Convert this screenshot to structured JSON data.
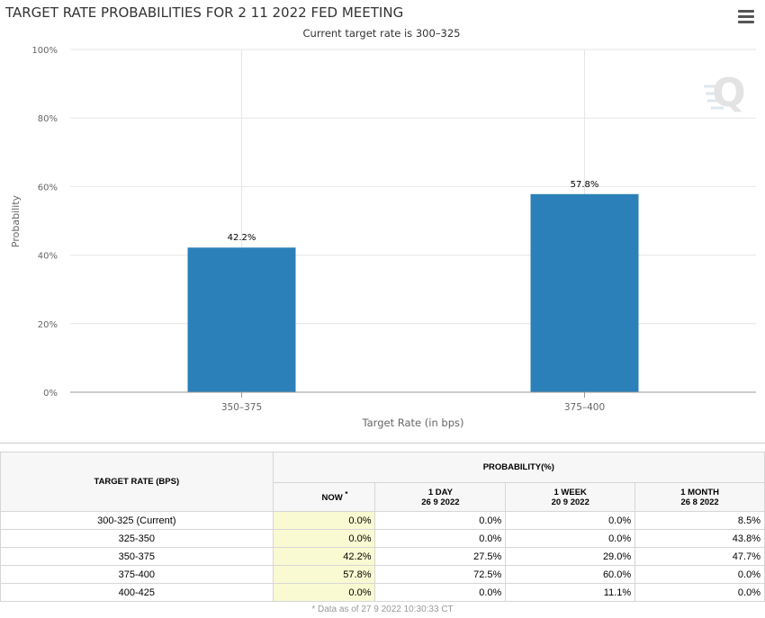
{
  "chart_data": {
    "type": "bar",
    "title": "TARGET RATE PROBABILITIES FOR 2 11 2022 FED MEETING",
    "subtitle": "Current target rate is 300–325",
    "xlabel": "Target Rate (in bps)",
    "ylabel": "Probability",
    "categories": [
      "350–375",
      "375–400"
    ],
    "values": [
      42.2,
      57.8
    ],
    "data_labels": [
      "42.2%",
      "57.8%"
    ],
    "ylim": [
      0,
      100
    ],
    "yticks": [
      0,
      20,
      40,
      60,
      80,
      100
    ],
    "ytick_labels": [
      "0%",
      "20%",
      "40%",
      "60%",
      "80%",
      "100%"
    ],
    "grid": true,
    "bar_color": "#2b80b9"
  },
  "logo_text": "Q",
  "table": {
    "rate_header": "TARGET RATE (BPS)",
    "prob_header": "PROBABILITY(%)",
    "col_now": "NOW",
    "col_now_mark": "*",
    "col_day_label": "1 DAY",
    "col_day_date": "26 9 2022",
    "col_week_label": "1 WEEK",
    "col_week_date": "20 9 2022",
    "col_month_label": "1 MONTH",
    "col_month_date": "26 8 2022",
    "rows": [
      {
        "rate": "300-325 (Current)",
        "now": "0.0%",
        "day": "0.0%",
        "week": "0.0%",
        "month": "8.5%"
      },
      {
        "rate": "325-350",
        "now": "0.0%",
        "day": "0.0%",
        "week": "0.0%",
        "month": "43.8%"
      },
      {
        "rate": "350-375",
        "now": "42.2%",
        "day": "27.5%",
        "week": "29.0%",
        "month": "47.7%"
      },
      {
        "rate": "375-400",
        "now": "57.8%",
        "day": "72.5%",
        "week": "60.0%",
        "month": "0.0%"
      },
      {
        "rate": "400-425",
        "now": "0.0%",
        "day": "0.0%",
        "week": "11.1%",
        "month": "0.0%"
      }
    ],
    "footnote": "* Data as of 27 9 2022 10:30:33 CT"
  }
}
